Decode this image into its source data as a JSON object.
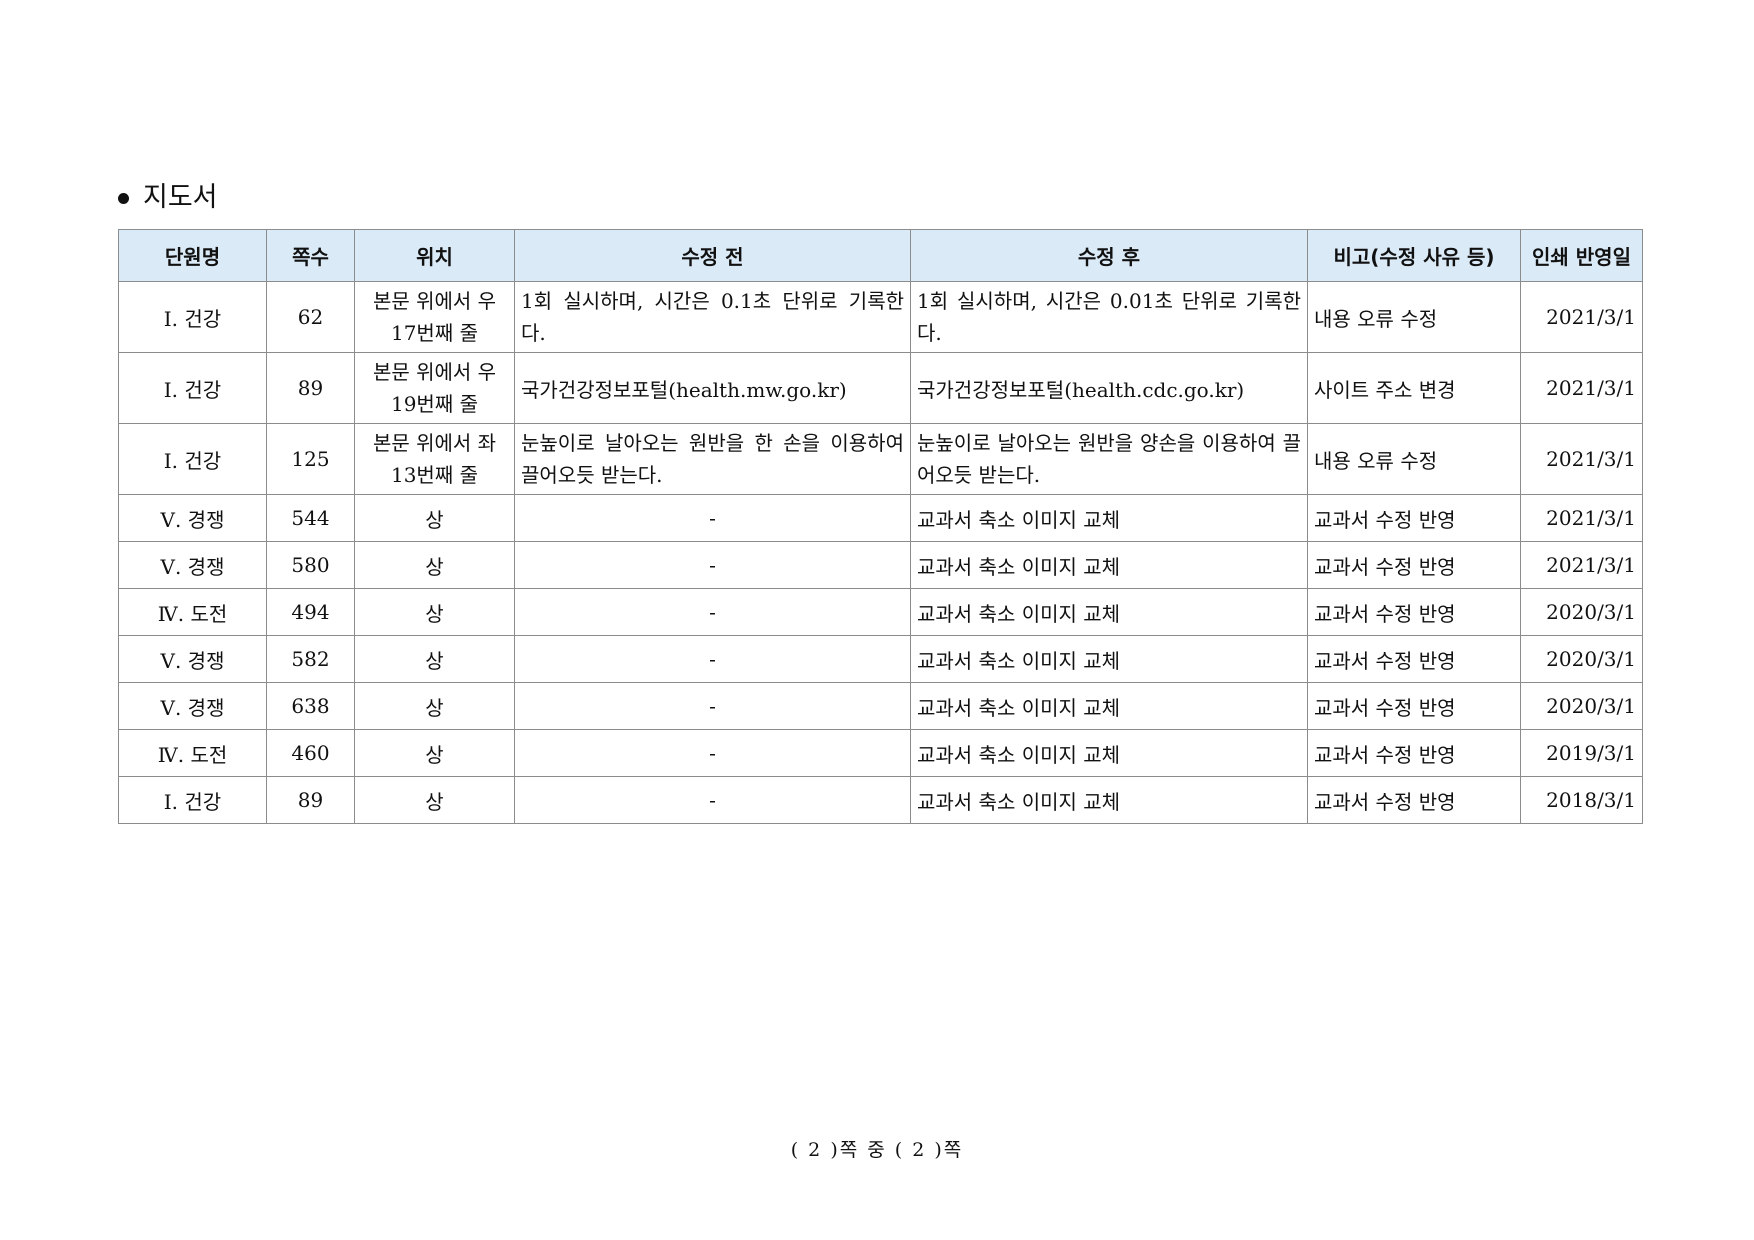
{
  "section": {
    "title": "지도서"
  },
  "table": {
    "headers": [
      "단원명",
      "쪽수",
      "위치",
      "수정 전",
      "수정 후",
      "비고(수정 사유 등)",
      "인쇄 반영일"
    ],
    "rows": [
      {
        "unit": "Ⅰ. 건강",
        "page": "62",
        "position": "본문 위에서 우17번째 줄",
        "before": "1회 실시하며, 시간은 0.1초 단위로 기록한다.",
        "after": "1회 실시하며, 시간은 0.01초 단위로 기록한다.",
        "note": "내용 오류 수정",
        "date": "2021/3/1"
      },
      {
        "unit": "Ⅰ. 건강",
        "page": "89",
        "position": "본문 위에서 우19번째 줄",
        "before": "국가건강정보포털(health.mw.go.kr)",
        "after": "국가건강정보포털(health.cdc.go.kr)",
        "note": "사이트 주소 변경",
        "date": "2021/3/1"
      },
      {
        "unit": "Ⅰ. 건강",
        "page": "125",
        "position": "본문 위에서 좌13번째 줄",
        "before": "눈높이로 날아오는 원반을 한 손을 이용하여 끌어오듯 받는다.",
        "after": "눈높이로 날아오는 원반을 양손을 이용하여 끌어오듯 받는다.",
        "note": "내용 오류 수정",
        "date": "2021/3/1"
      },
      {
        "unit": "Ⅴ. 경쟁",
        "page": "544",
        "position": "상",
        "before": "-",
        "after": "교과서 축소 이미지 교체",
        "note": "교과서 수정 반영",
        "date": "2021/3/1"
      },
      {
        "unit": "Ⅴ. 경쟁",
        "page": "580",
        "position": "상",
        "before": "-",
        "after": "교과서 축소 이미지 교체",
        "note": "교과서 수정 반영",
        "date": "2021/3/1"
      },
      {
        "unit": "Ⅳ. 도전",
        "page": "494",
        "position": "상",
        "before": "-",
        "after": "교과서 축소 이미지 교체",
        "note": "교과서 수정 반영",
        "date": "2020/3/1"
      },
      {
        "unit": "Ⅴ. 경쟁",
        "page": "582",
        "position": "상",
        "before": "-",
        "after": "교과서 축소 이미지 교체",
        "note": "교과서 수정 반영",
        "date": "2020/3/1"
      },
      {
        "unit": "Ⅴ. 경쟁",
        "page": "638",
        "position": "상",
        "before": "-",
        "after": "교과서 축소 이미지 교체",
        "note": "교과서 수정 반영",
        "date": "2020/3/1"
      },
      {
        "unit": "Ⅳ. 도전",
        "page": "460",
        "position": "상",
        "before": "-",
        "after": "교과서 축소 이미지 교체",
        "note": "교과서 수정 반영",
        "date": "2019/3/1"
      },
      {
        "unit": "Ⅰ. 건강",
        "page": "89",
        "position": "상",
        "before": "-",
        "after": "교과서 축소 이미지 교체",
        "note": "교과서 수정 반영",
        "date": "2018/3/1"
      }
    ]
  },
  "footer": {
    "text": "( 2 )쪽 중 ( 2 )쪽"
  }
}
